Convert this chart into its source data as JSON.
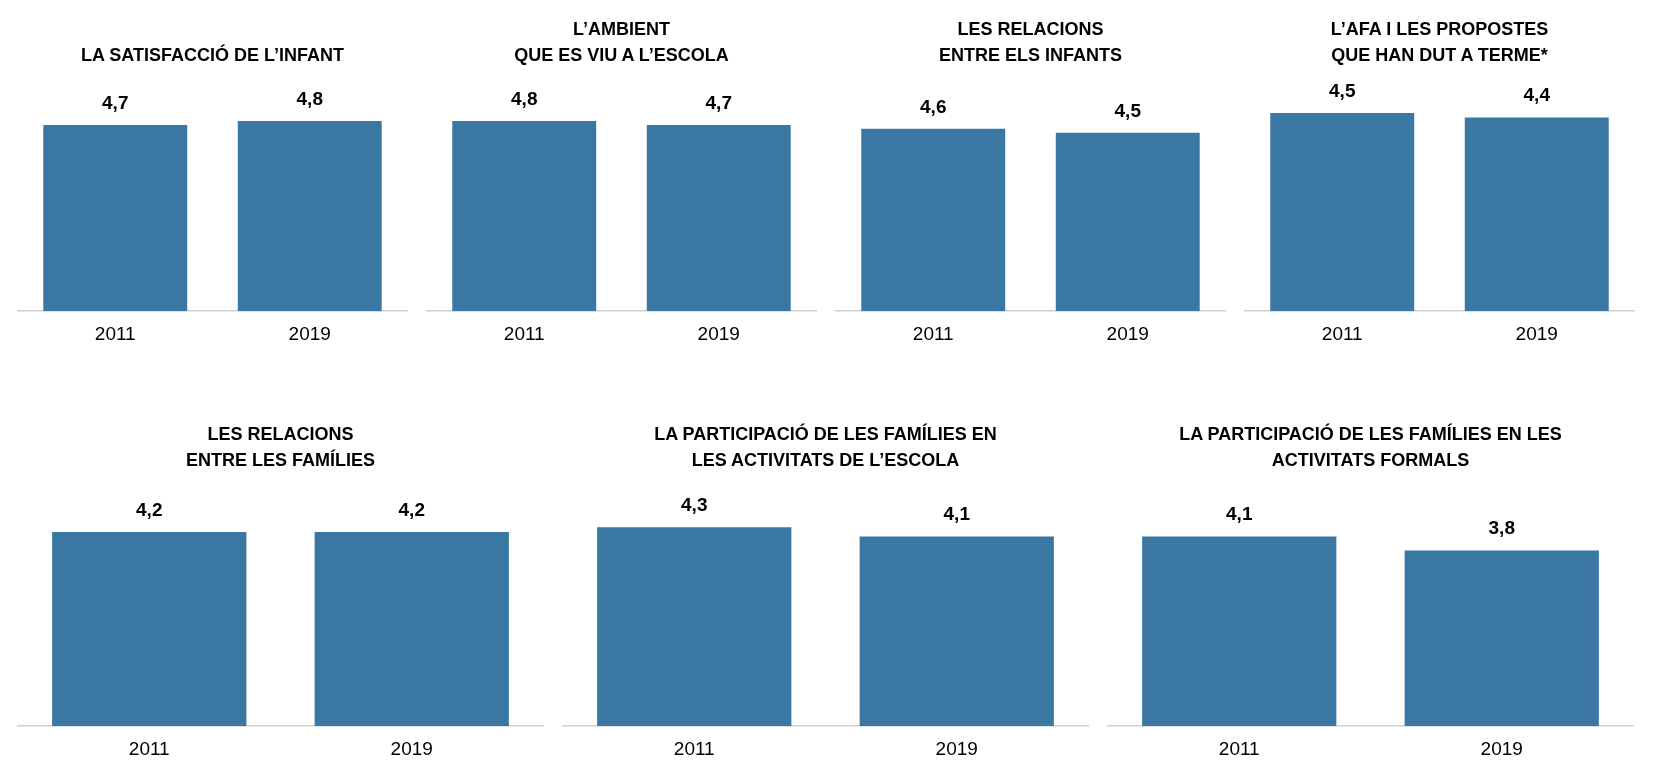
{
  "chart_data": [
    {
      "type": "bar",
      "title": "LA SATISFACCIÓ DE L’INFANT",
      "categories": [
        "2011",
        "2019"
      ],
      "values": [
        4.7,
        4.8
      ],
      "value_labels": [
        "4,7",
        "4,8"
      ],
      "color": "#3a77a3"
    },
    {
      "type": "bar",
      "title": "L’AMBIENT\nQUE ES VIU A L’ESCOLA",
      "categories": [
        "2011",
        "2019"
      ],
      "values": [
        4.8,
        4.7
      ],
      "value_labels": [
        "4,8",
        "4,7"
      ],
      "color": "#3a77a3"
    },
    {
      "type": "bar",
      "title": "LES RELACIONS\nENTRE ELS INFANTS",
      "categories": [
        "2011",
        "2019"
      ],
      "values": [
        4.6,
        4.5
      ],
      "value_labels": [
        "4,6",
        "4,5"
      ],
      "color": "#3a77a3"
    },
    {
      "type": "bar",
      "title": "L’AFA I LES PROPOSTES\nQUE HAN DUT A TERME*",
      "categories": [
        "2011",
        "2019"
      ],
      "values": [
        4.5,
        4.4
      ],
      "value_labels": [
        "4,5",
        "4,4"
      ],
      "color": "#3a77a3"
    },
    {
      "type": "bar",
      "title": "LES RELACIONS\nENTRE LES FAMÍLIES",
      "categories": [
        "2011",
        "2019"
      ],
      "values": [
        4.2,
        4.2
      ],
      "value_labels": [
        "4,2",
        "4,2"
      ],
      "color": "#3a77a3"
    },
    {
      "type": "bar",
      "title": "LA PARTICIPACIÓ DE LES FAMÍLIES EN\nLES ACTIVITATS DE L’ESCOLA",
      "categories": [
        "2011",
        "2019"
      ],
      "values": [
        4.3,
        4.1
      ],
      "value_labels": [
        "4,3",
        "4,1"
      ],
      "color": "#3a77a3"
    },
    {
      "type": "bar",
      "title": "LA PARTICIPACIÓ DE LES FAMÍLIES EN LES\nACTIVITATS FORMALS",
      "categories": [
        "2011",
        "2019"
      ],
      "values": [
        4.1,
        3.8
      ],
      "value_labels": [
        "4,1",
        "3,8"
      ],
      "color": "#3a77a3"
    }
  ]
}
